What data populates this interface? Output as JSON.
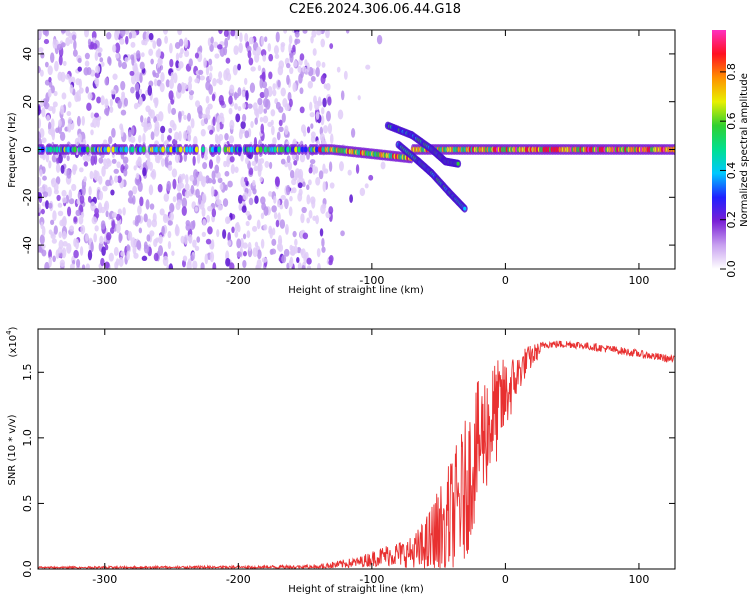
{
  "title": "C2E6.2024.306.06.44.G18",
  "chart_data": [
    {
      "type": "heatmap",
      "xlabel": "Height of straight line (km)",
      "ylabel": "Frequency (Hz)",
      "xlim": [
        -350,
        127
      ],
      "ylim": [
        -50,
        50
      ],
      "x_ticks": [
        -300,
        -200,
        -100,
        0,
        100
      ],
      "y_ticks": [
        -40,
        -20,
        0,
        20,
        40
      ],
      "colorbar": {
        "label": "Normalized spectral amplitude",
        "range": [
          0,
          0.97
        ],
        "ticks": [
          "0.0",
          "0.2",
          "0.4",
          "0.6",
          "0.8"
        ],
        "colors": [
          "#ffffff",
          "#c8a0f0",
          "#7a1fd6",
          "#2020ff",
          "#00c8ff",
          "#00e090",
          "#30d030",
          "#e8f000",
          "#ff9000",
          "#ff1020",
          "#ff30c0"
        ]
      },
      "features": {
        "noise_region_x": [
          -350,
          -140
        ],
        "carrier_frequency_hz": 0,
        "branch_upper": [
          [
            -88,
            10
          ],
          [
            -70,
            6
          ],
          [
            -55,
            0
          ],
          [
            -45,
            -5
          ],
          [
            -35,
            -6
          ]
        ],
        "branch_lower": [
          [
            -80,
            2
          ],
          [
            -65,
            -5
          ],
          [
            -55,
            -10
          ],
          [
            -42,
            -18
          ],
          [
            -30,
            -25
          ]
        ]
      }
    },
    {
      "type": "line",
      "xlabel": "Height of straight line (km)",
      "ylabel": "SNR (10 * v/v)",
      "y_multiplier": "(x10",
      "y_multiplier_exp": "4",
      "xlim": [
        -350,
        127
      ],
      "ylim": [
        0,
        1.83
      ],
      "x_ticks": [
        -300,
        -200,
        -100,
        0,
        100
      ],
      "y_ticks": [
        "0.0",
        "0.5",
        "1.0",
        "1.5"
      ],
      "y_tick_values": [
        0,
        0.5,
        1.0,
        1.5
      ],
      "color": "#e83030",
      "trend": [
        [
          -350,
          0.01
        ],
        [
          -200,
          0.015
        ],
        [
          -140,
          0.02
        ],
        [
          -110,
          0.06
        ],
        [
          -90,
          0.12
        ],
        [
          -70,
          0.15
        ],
        [
          -60,
          0.2
        ],
        [
          -50,
          0.35
        ],
        [
          -40,
          0.5
        ],
        [
          -30,
          0.7
        ],
        [
          -22,
          1.0
        ],
        [
          -15,
          1.15
        ],
        [
          -5,
          1.3
        ],
        [
          5,
          1.45
        ],
        [
          15,
          1.6
        ],
        [
          30,
          1.72
        ],
        [
          50,
          1.72
        ],
        [
          80,
          1.68
        ],
        [
          110,
          1.63
        ],
        [
          127,
          1.6
        ]
      ],
      "noise_amp": [
        [
          -350,
          0.01
        ],
        [
          -150,
          0.015
        ],
        [
          -110,
          0.04
        ],
        [
          -70,
          0.12
        ],
        [
          -50,
          0.35
        ],
        [
          -30,
          0.55
        ],
        [
          -10,
          0.45
        ],
        [
          10,
          0.15
        ],
        [
          30,
          0.03
        ],
        [
          127,
          0.03
        ]
      ]
    }
  ]
}
